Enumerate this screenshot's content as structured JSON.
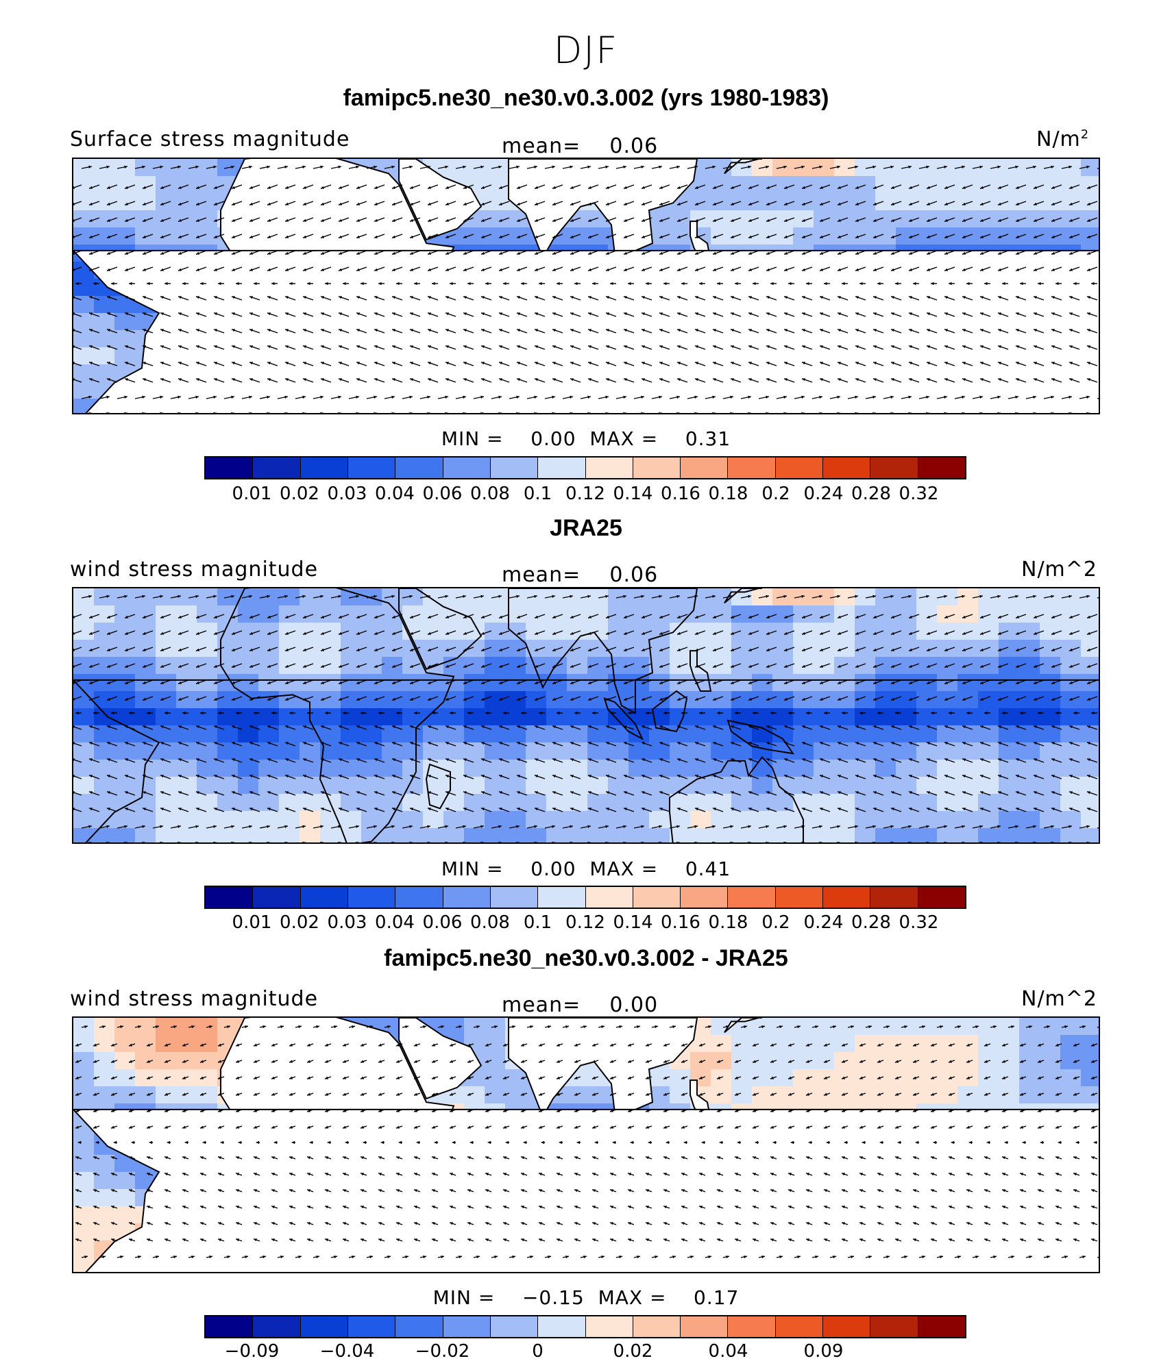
{
  "figure_title": "DJF",
  "units_note_superscript": "2",
  "chart_data": [
    {
      "type": "heatmap",
      "title": "famipc5.ne30_ne30.v0.3.002 (yrs 1980-1983)",
      "left_label": "Surface stress magnitude",
      "mean_label": "mean=",
      "mean_value": "0.06",
      "units_label": "N/m",
      "min_label": "MIN =",
      "min_value": "0.00",
      "max_label": "MAX =",
      "max_value": "0.31",
      "colorbar_ticks": [
        "0.01",
        "0.02",
        "0.03",
        "0.04",
        "0.06",
        "0.08",
        "0.1",
        "0.12",
        "0.14",
        "0.16",
        "0.18",
        "0.2",
        "0.24",
        "0.28",
        "0.32"
      ],
      "mean_numeric": 0.06,
      "variant": "model"
    },
    {
      "type": "heatmap",
      "title": "JRA25",
      "left_label": "wind stress magnitude",
      "mean_label": "mean=",
      "mean_value": "0.06",
      "units_label": "N/m^2",
      "min_label": "MIN =",
      "min_value": "0.00",
      "max_label": "MAX =",
      "max_value": "0.41",
      "colorbar_ticks": [
        "0.01",
        "0.02",
        "0.03",
        "0.04",
        "0.06",
        "0.08",
        "0.1",
        "0.12",
        "0.14",
        "0.16",
        "0.18",
        "0.2",
        "0.24",
        "0.28",
        "0.32"
      ],
      "mean_numeric": 0.06,
      "variant": "obs"
    },
    {
      "type": "heatmap",
      "title": "famipc5.ne30_ne30.v0.3.002 - JRA25",
      "left_label": "wind stress magnitude",
      "mean_label": "mean=",
      "mean_value": "0.00",
      "units_label": "N/m^2",
      "min_label": "MIN =",
      "min_value": "−0.15",
      "max_label": "MAX =",
      "max_value": "0.17",
      "colorbar_ticks": [
        "−0.09",
        "",
        "−0.04",
        "",
        "−0.02",
        "",
        "0",
        "",
        "0.02",
        "",
        "0.04",
        "",
        "0.09",
        "",
        ""
      ],
      "mean_numeric": 0.0,
      "variant": "diff"
    }
  ],
  "colors": {
    "palette": [
      "#00008b",
      "#0a26b5",
      "#0a3fd6",
      "#1f5ae8",
      "#3f76f0",
      "#6f98f5",
      "#a3bdf6",
      "#d6e4fa",
      "#fde6d6",
      "#fccaae",
      "#f9a682",
      "#f67c50",
      "#ee5a26",
      "#dc3b0e",
      "#b2240a",
      "#8b0000"
    ],
    "land": "#ffffff",
    "coast": "#000000"
  }
}
